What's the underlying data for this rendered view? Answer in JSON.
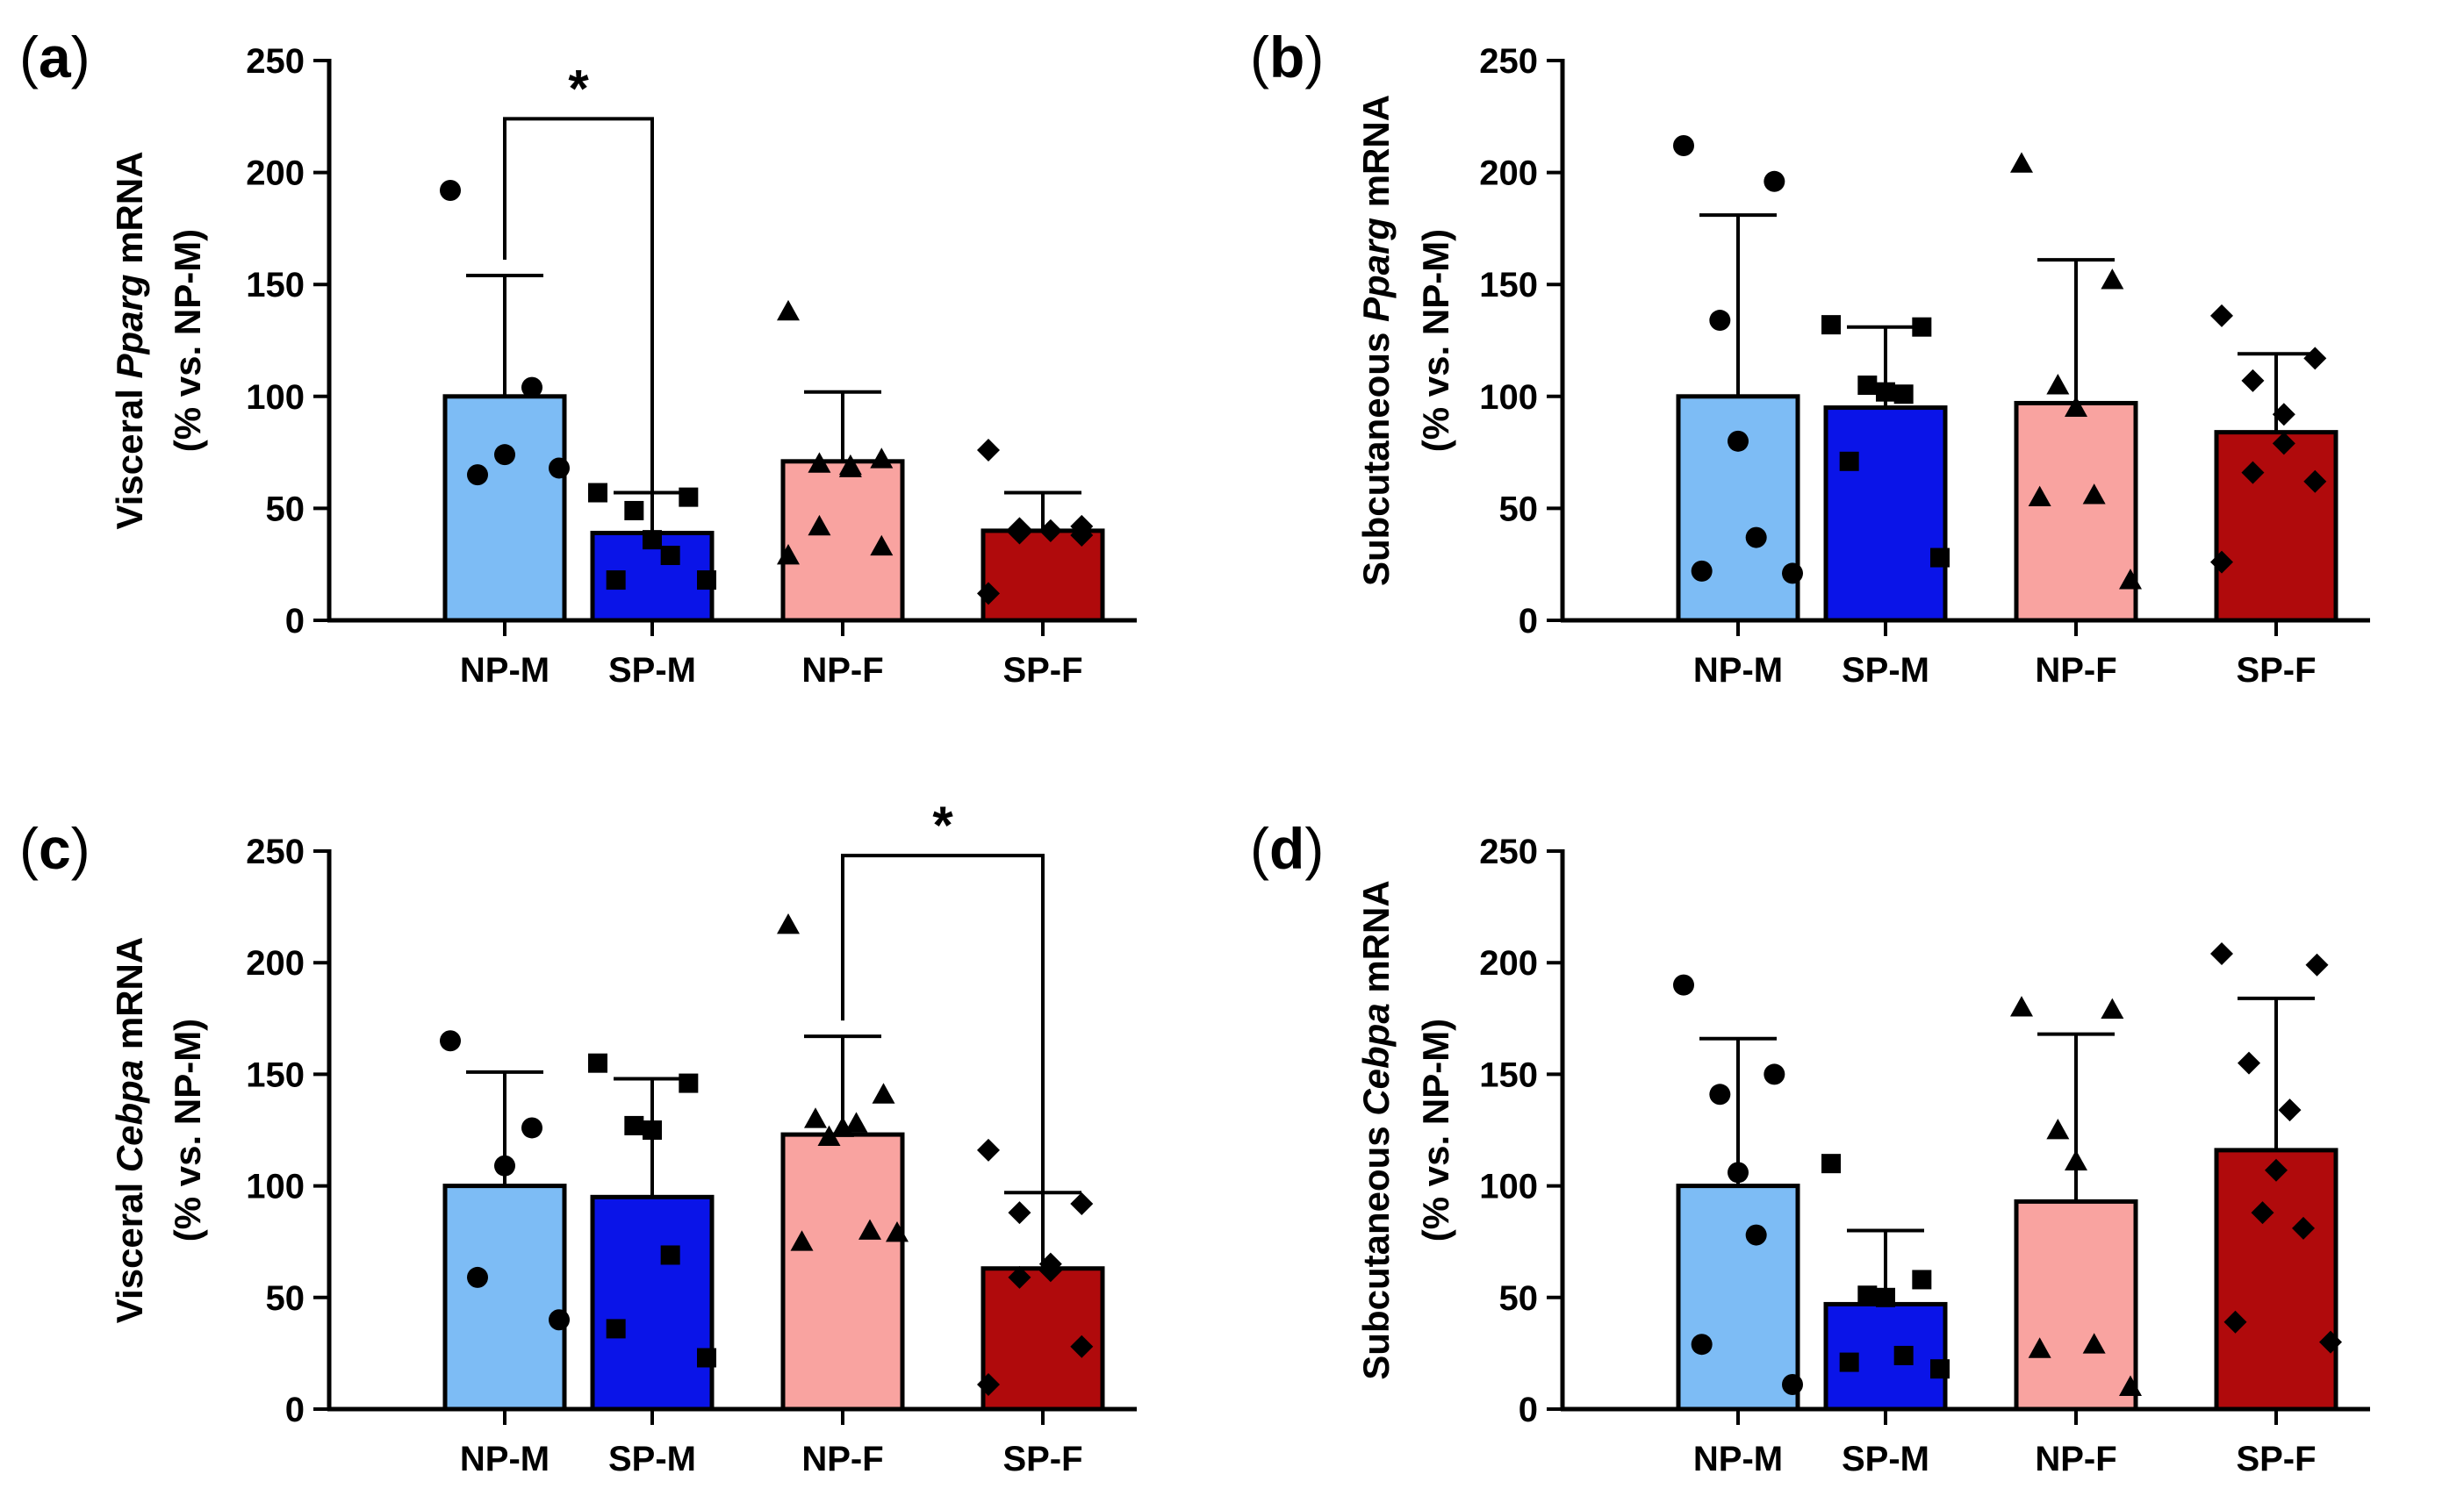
{
  "chart_data": [
    {
      "id": "a",
      "panel_label": "a",
      "type": "bar",
      "gene": "Pparg",
      "ylabel_prefix": "Visceral ",
      "ylabel_suffix": " mRNA",
      "ylabel_line2": "(% vs. NP-M)",
      "ylim": [
        0,
        250
      ],
      "yticks": [
        0,
        50,
        100,
        150,
        200,
        250
      ],
      "categories": [
        "NP-M",
        "SP-M",
        "NP-F",
        "SP-F"
      ],
      "colors": [
        "#7dbcf5",
        "#0a14e8",
        "#f9a3a0",
        "#b00a0c"
      ],
      "markers": [
        "circle",
        "square",
        "triangle",
        "diamond"
      ],
      "means": [
        100,
        39,
        71,
        40
      ],
      "sd_upper": [
        154,
        57,
        102,
        57
      ],
      "points": [
        [
          192,
          104,
          74,
          65,
          68
        ],
        [
          57,
          55,
          49,
          36,
          29,
          18,
          18
        ],
        [
          138,
          72,
          70,
          69,
          68,
          42,
          33,
          29
        ],
        [
          76,
          42,
          41,
          40,
          40,
          39,
          38,
          12
        ]
      ],
      "significance": [
        {
          "from": 0,
          "to": 1,
          "y": 224,
          "label": "*"
        }
      ]
    },
    {
      "id": "b",
      "panel_label": "b",
      "type": "bar",
      "gene": "Pparg",
      "ylabel_prefix": "Subcutaneous ",
      "ylabel_suffix": " mRNA",
      "ylabel_line2": "(% vs. NP-M)",
      "ylim": [
        0,
        250
      ],
      "yticks": [
        0,
        50,
        100,
        150,
        200,
        250
      ],
      "categories": [
        "NP-M",
        "SP-M",
        "NP-F",
        "SP-F"
      ],
      "colors": [
        "#7dbcf5",
        "#0a14e8",
        "#f9a3a0",
        "#b00a0c"
      ],
      "markers": [
        "circle",
        "square",
        "triangle",
        "diamond"
      ],
      "means": [
        100,
        95,
        97,
        84
      ],
      "sd_upper": [
        181,
        131,
        161,
        119
      ],
      "points": [
        [
          212,
          196,
          134,
          80,
          37,
          22,
          21
        ],
        [
          132,
          131,
          105,
          102,
          101,
          71,
          28
        ],
        [
          204,
          152,
          105,
          95,
          56,
          55,
          18
        ],
        [
          136,
          117,
          107,
          92,
          79,
          66,
          62,
          26
        ]
      ],
      "significance": []
    },
    {
      "id": "c",
      "panel_label": "c",
      "type": "bar",
      "gene": "Cebpa",
      "ylabel_prefix": "Visceral ",
      "ylabel_suffix": " mRNA",
      "ylabel_line2": "(% vs. NP-M)",
      "ylim": [
        0,
        250
      ],
      "yticks": [
        0,
        50,
        100,
        150,
        200,
        250
      ],
      "categories": [
        "NP-M",
        "SP-M",
        "NP-F",
        "SP-F"
      ],
      "colors": [
        "#7dbcf5",
        "#0a14e8",
        "#f9a3a0",
        "#b00a0c"
      ],
      "markers": [
        "circle",
        "square",
        "triangle",
        "diamond"
      ],
      "means": [
        100,
        95,
        123,
        63
      ],
      "sd_upper": [
        151,
        148,
        167,
        97
      ],
      "points": [
        [
          165,
          126,
          109,
          59,
          40
        ],
        [
          155,
          146,
          127,
          125,
          69,
          36,
          23
        ],
        [
          217,
          141,
          130,
          128,
          126,
          122,
          80,
          75,
          79
        ],
        [
          116,
          92,
          88,
          65,
          62,
          59,
          28,
          11
        ]
      ],
      "significance": [
        {
          "from": 2,
          "to": 3,
          "y": 248,
          "label": "*"
        }
      ]
    },
    {
      "id": "d",
      "panel_label": "d",
      "type": "bar",
      "gene": "Cebpa",
      "ylabel_prefix": "Subcutaneous ",
      "ylabel_suffix": " mRNA",
      "ylabel_line2": "(% vs. NP-M)",
      "ylim": [
        0,
        250
      ],
      "yticks": [
        0,
        50,
        100,
        150,
        200,
        250
      ],
      "categories": [
        "NP-M",
        "SP-M",
        "NP-F",
        "SP-F"
      ],
      "colors": [
        "#7dbcf5",
        "#0a14e8",
        "#f9a3a0",
        "#b00a0c"
      ],
      "markers": [
        "circle",
        "square",
        "triangle",
        "diamond"
      ],
      "means": [
        100,
        47,
        93,
        116
      ],
      "sd_upper": [
        166,
        80,
        168,
        184
      ],
      "points": [
        [
          190,
          150,
          141,
          106,
          78,
          29,
          11
        ],
        [
          110,
          58,
          51,
          50,
          24,
          21,
          18
        ],
        [
          180,
          179,
          125,
          111,
          29,
          27,
          10
        ],
        [
          204,
          199,
          155,
          134,
          107,
          88,
          81,
          39,
          30
        ]
      ],
      "significance": []
    }
  ]
}
